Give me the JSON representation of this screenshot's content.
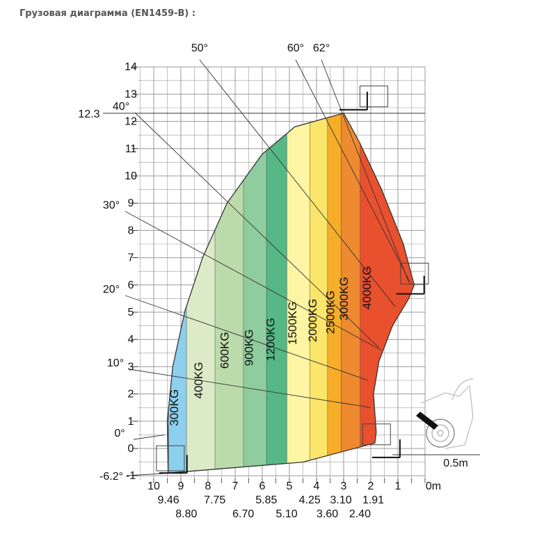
{
  "title": "Грузовая диаграмма (EN1459-B) :",
  "chart_data": {
    "type": "area",
    "title": "Грузовая диаграмма (EN1459-B) :",
    "xlabel": "",
    "ylabel": "",
    "xlim": [
      0,
      10.5
    ],
    "ylim": [
      -1.3,
      14
    ],
    "grid": true,
    "y_ticks": [
      "14",
      "13",
      "12",
      "11",
      "10",
      "9",
      "8",
      "7",
      "6",
      "5",
      "4",
      "3",
      "2",
      "1",
      "0",
      "-1"
    ],
    "x_ticks_major": [
      "10",
      "9",
      "8",
      "7",
      "6",
      "5",
      "4",
      "3",
      "2",
      "1",
      "0m"
    ],
    "x_ticks_values": [
      "9.46",
      "7.75",
      "5.85",
      "4.25",
      "3.10",
      "1.91"
    ],
    "x_ticks_values_lower": [
      "8.80",
      "6.70",
      "5.10",
      "3.60",
      "2.40"
    ],
    "extra_labels": {
      "max_height": "12.3",
      "min_height": "-6.2°",
      "offset": "0.5m"
    },
    "angles": [
      "0°",
      "10°",
      "20°",
      "30°",
      "40°",
      "50°",
      "60°",
      "62°"
    ],
    "envelope": [
      [
        9.46,
        -0.9
      ],
      [
        9.5,
        1
      ],
      [
        9.3,
        3
      ],
      [
        8.85,
        5.05
      ],
      [
        8.2,
        7
      ],
      [
        7.3,
        9
      ],
      [
        6.0,
        10.8
      ],
      [
        4.8,
        11.8
      ],
      [
        3.0,
        12.3
      ],
      [
        2.4,
        11.2
      ],
      [
        1.6,
        9.5
      ],
      [
        0.8,
        7.5
      ],
      [
        0.4,
        6
      ],
      [
        0.6,
        5.5
      ],
      [
        1.2,
        4.5
      ],
      [
        1.7,
        3.2
      ],
      [
        1.9,
        2
      ],
      [
        1.8,
        0.6
      ],
      [
        1.85,
        0.2
      ],
      [
        4.5,
        -0.5
      ],
      [
        9.46,
        -0.9
      ]
    ],
    "series": [
      {
        "name": "4000KG",
        "max_reach": 2.4,
        "color": "#e8502e"
      },
      {
        "name": "3000KG",
        "max_reach": 3.1,
        "color": "#ee8a30"
      },
      {
        "name": "2500KG",
        "max_reach": 3.6,
        "color": "#f6ad28"
      },
      {
        "name": "2000KG",
        "max_reach": 4.25,
        "color": "#fbe56a"
      },
      {
        "name": "1500KG",
        "max_reach": 5.1,
        "color": "#fdf4a4"
      },
      {
        "name": "1200KG",
        "max_reach": 5.85,
        "color": "#55b886"
      },
      {
        "name": "900KG",
        "max_reach": 6.7,
        "color": "#8fcc9e"
      },
      {
        "name": "600KG",
        "max_reach": 7.75,
        "color": "#bcdbaa"
      },
      {
        "name": "400KG",
        "max_reach": 8.8,
        "color": "#dcebc7"
      },
      {
        "name": "300KG",
        "max_reach": 9.46,
        "color": "#8dd0ee"
      }
    ]
  }
}
